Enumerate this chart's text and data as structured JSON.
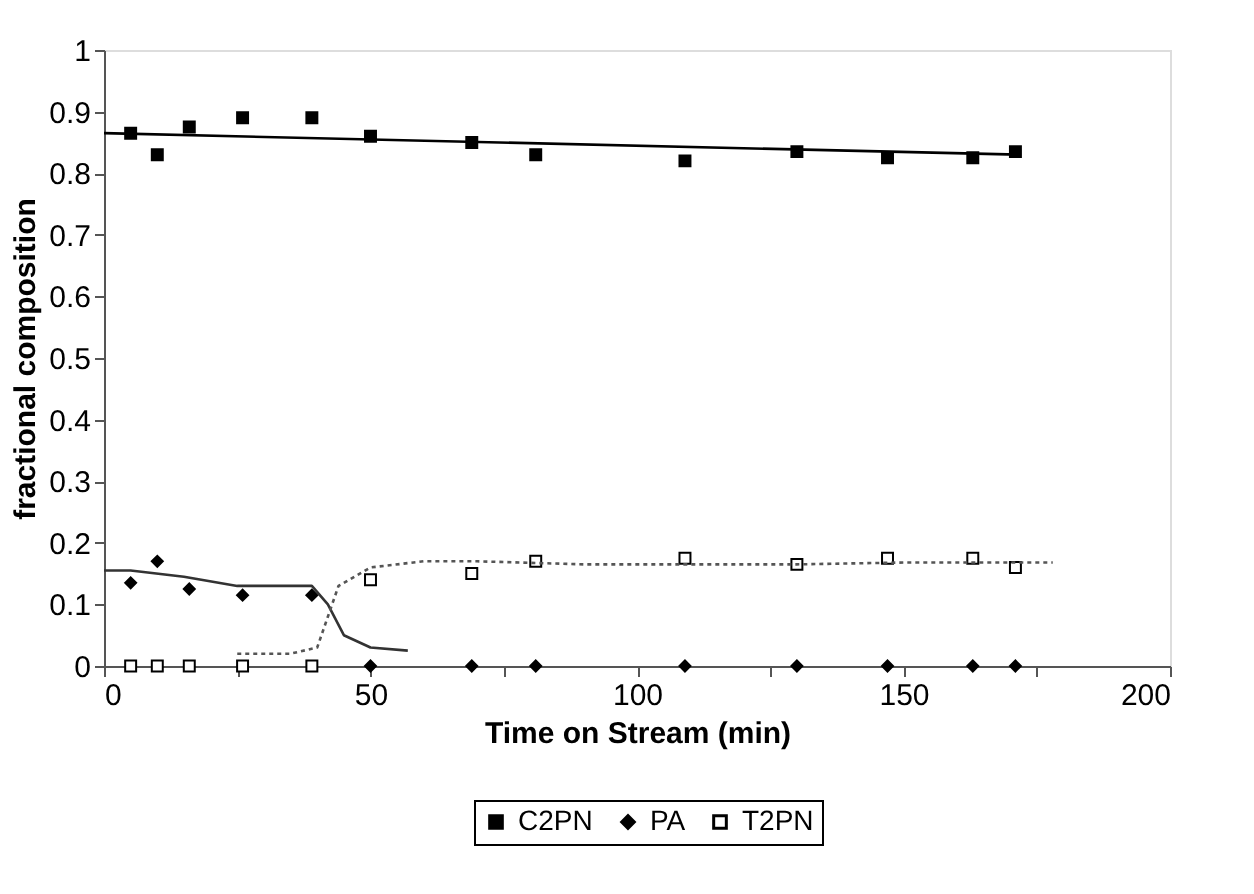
{
  "chart_data": {
    "type": "scatter",
    "xlabel": "Time on Stream (min)",
    "ylabel": "fractional composition",
    "xlim": [
      0,
      200
    ],
    "ylim": [
      0,
      1
    ],
    "xticks": [
      0,
      {
        "value": 25,
        "label": null
      },
      50,
      {
        "value": 75,
        "label": null
      },
      100,
      {
        "value": 125,
        "label": null
      },
      150,
      {
        "value": 175,
        "label": null
      },
      200
    ],
    "yticks": [
      0,
      0.1,
      0.2,
      0.3,
      0.4,
      0.5,
      0.6,
      0.7,
      0.8,
      0.9,
      1
    ],
    "grid": false,
    "legend": "bottom",
    "x": [
      5,
      10,
      16,
      26,
      39,
      50,
      69,
      81,
      109,
      130,
      147,
      163,
      171
    ],
    "series": [
      {
        "name": "C2PN",
        "color": "#000000",
        "marker": "square",
        "values": [
          0.865,
          0.83,
          0.875,
          0.89,
          0.89,
          0.86,
          0.85,
          0.83,
          0.82,
          0.835,
          0.825,
          0.825,
          0.835
        ]
      },
      {
        "name": "PA",
        "color": "#000000",
        "marker": "diamond",
        "values": [
          0.135,
          0.17,
          0.125,
          0.115,
          0.115,
          0,
          0,
          0,
          0,
          0,
          0,
          0,
          0
        ]
      },
      {
        "name": "T2PN",
        "color": "#000000",
        "marker": "square",
        "values": [
          0,
          0,
          0,
          0,
          0,
          0.14,
          0.15,
          0.17,
          0.175,
          0.165,
          0.175,
          0.175,
          0.16
        ]
      },
      {
        "type": "line",
        "color": "#000000",
        "line_style": "solid",
        "x": [
          0,
          172
        ],
        "values": [
          0.865,
          0.83
        ]
      },
      {
        "type": "line",
        "color": "#333333",
        "line_style": "solid",
        "x": [
          0,
          5,
          15,
          25,
          35,
          39,
          42,
          45,
          50,
          57
        ],
        "values": [
          0.155,
          0.155,
          0.145,
          0.13,
          0.13,
          0.13,
          0.1,
          0.05,
          0.03,
          0.025
        ]
      },
      {
        "type": "line",
        "color": "#555555",
        "line_style": "dotted",
        "x": [
          25,
          35,
          40,
          42,
          44,
          50,
          60,
          70,
          90,
          110,
          130,
          150,
          178
        ],
        "values": [
          0.02,
          0.02,
          0.03,
          0.08,
          0.13,
          0.16,
          0.17,
          0.17,
          0.165,
          0.165,
          0.165,
          0.168,
          0.168
        ]
      }
    ]
  }
}
